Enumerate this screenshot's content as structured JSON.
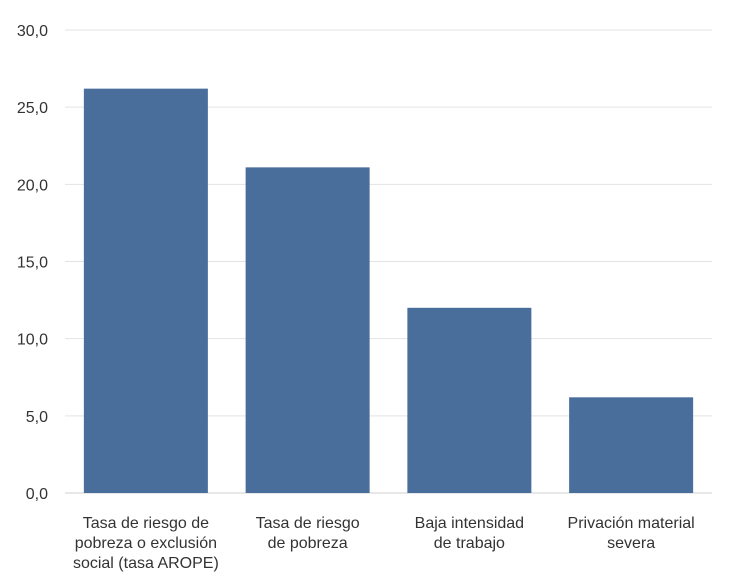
{
  "chart_data": {
    "type": "bar",
    "categories": [
      [
        "Tasa de riesgo de",
        "pobreza o exclusión",
        "social (tasa AROPE)"
      ],
      [
        "Tasa de riesgo",
        "de pobreza"
      ],
      [
        "Baja intensidad",
        "de trabajo"
      ],
      [
        "Privación material",
        "severa"
      ]
    ],
    "values": [
      26.2,
      21.1,
      12.0,
      6.2
    ],
    "ylim": [
      0,
      30
    ],
    "yticks": [
      "0,0",
      "5,0",
      "10,0",
      "15,0",
      "20,0",
      "25,0",
      "30,0"
    ],
    "grid": true,
    "bar_color": "#4a6e9b",
    "grid_color": "#e3e3e3"
  }
}
